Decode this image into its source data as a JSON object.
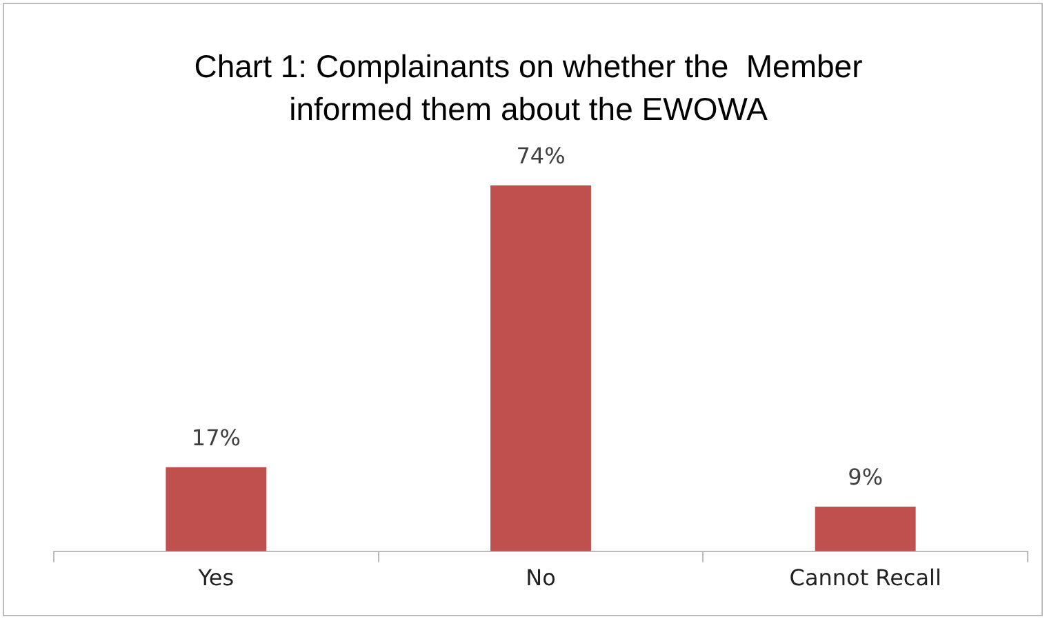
{
  "chart_data": {
    "type": "bar",
    "title": "Chart 1: Complainants on whether the  Member informed them about the EWOWA",
    "categories": [
      "Yes",
      "No",
      "Cannot Recall"
    ],
    "values": [
      17,
      74,
      9
    ],
    "value_labels": [
      "17%",
      "74%",
      "9%"
    ],
    "color": "#c0504d",
    "legend": false
  }
}
